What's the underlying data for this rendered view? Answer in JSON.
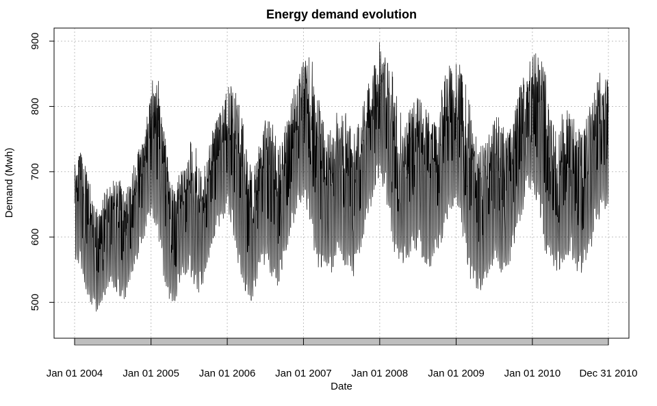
{
  "chart_data": {
    "type": "line",
    "title": "Energy demand evolution",
    "xlabel": "Date",
    "ylabel": "Demand (Mwh)",
    "x_ticks": [
      "Jan 01 2004",
      "Jan 01 2005",
      "Jan 01 2006",
      "Jan 01 2007",
      "Jan 01 2008",
      "Jan 01 2009",
      "Jan 01 2010",
      "Dec 31 2010"
    ],
    "y_ticks": [
      500,
      600,
      700,
      800,
      900
    ],
    "xlim": [
      "2003-11-01",
      "2011-03-01"
    ],
    "ylim": [
      445,
      920
    ],
    "grid": true,
    "grid_style": "dotted",
    "line_color": "#000000",
    "grid_color": "#bfbfbf",
    "band_color": "#bebebe",
    "series": [
      {
        "x": [
          "2004-01-01",
          "2004-02-01",
          "2004-03-01",
          "2004-04-01",
          "2004-05-01",
          "2004-06-01",
          "2004-07-01",
          "2004-08-01",
          "2004-09-01",
          "2004-10-01",
          "2004-11-01",
          "2004-12-01",
          "2005-01-01",
          "2005-02-01",
          "2005-03-01",
          "2005-04-01",
          "2005-05-01",
          "2005-06-01",
          "2005-07-01",
          "2005-08-01",
          "2005-09-01",
          "2005-10-01",
          "2005-11-01",
          "2005-12-01",
          "2006-01-01",
          "2006-02-01",
          "2006-03-01",
          "2006-04-01",
          "2006-05-01",
          "2006-06-01",
          "2006-07-01",
          "2006-08-01",
          "2006-09-01",
          "2006-10-01",
          "2006-11-01",
          "2006-12-01",
          "2007-01-01",
          "2007-02-01",
          "2007-03-01",
          "2007-04-01",
          "2007-05-01",
          "2007-06-01",
          "2007-07-01",
          "2007-08-01",
          "2007-09-01",
          "2007-10-01",
          "2007-11-01",
          "2007-12-01",
          "2008-01-01",
          "2008-02-01",
          "2008-03-01",
          "2008-04-01",
          "2008-05-01",
          "2008-06-01",
          "2008-07-01",
          "2008-08-01",
          "2008-09-01",
          "2008-10-01",
          "2008-11-01",
          "2008-12-01",
          "2009-01-01",
          "2009-02-01",
          "2009-03-01",
          "2009-04-01",
          "2009-05-01",
          "2009-06-01",
          "2009-07-01",
          "2009-08-01",
          "2009-09-01",
          "2009-10-01",
          "2009-11-01",
          "2009-12-01",
          "2010-01-01",
          "2010-02-01",
          "2010-03-01",
          "2010-04-01",
          "2010-05-01",
          "2010-06-01",
          "2010-07-01",
          "2010-08-01",
          "2010-09-01",
          "2010-10-01",
          "2010-11-01",
          "2010-12-01"
        ],
        "low": [
          560,
          555,
          500,
          490,
          480,
          520,
          520,
          510,
          500,
          540,
          570,
          600,
          620,
          610,
          540,
          500,
          500,
          540,
          540,
          510,
          520,
          560,
          600,
          620,
          640,
          600,
          540,
          510,
          500,
          540,
          560,
          540,
          520,
          560,
          600,
          640,
          660,
          620,
          560,
          540,
          530,
          560,
          570,
          540,
          540,
          580,
          620,
          660,
          690,
          660,
          580,
          560,
          555,
          570,
          580,
          560,
          550,
          570,
          600,
          640,
          650,
          600,
          540,
          520,
          510,
          540,
          560,
          545,
          545,
          580,
          620,
          660,
          670,
          640,
          580,
          555,
          545,
          560,
          575,
          545,
          545,
          570,
          610,
          640
        ],
        "high": [
          720,
          730,
          700,
          660,
          640,
          680,
          690,
          690,
          670,
          700,
          740,
          750,
          840,
          850,
          800,
          700,
          680,
          720,
          760,
          740,
          700,
          730,
          780,
          800,
          830,
          840,
          820,
          740,
          700,
          740,
          780,
          780,
          740,
          760,
          820,
          840,
          870,
          880,
          860,
          780,
          760,
          790,
          800,
          790,
          760,
          780,
          840,
          860,
          900,
          880,
          860,
          800,
          780,
          800,
          820,
          810,
          780,
          790,
          840,
          870,
          880,
          860,
          820,
          760,
          740,
          760,
          780,
          790,
          760,
          780,
          830,
          860,
          880,
          890,
          860,
          780,
          760,
          800,
          800,
          790,
          760,
          800,
          850,
          860
        ]
      }
    ]
  }
}
